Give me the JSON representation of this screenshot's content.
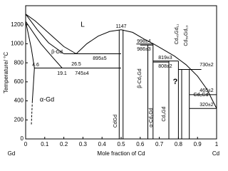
{
  "chart_data": {
    "type": "phase-diagram",
    "x_label": "Mole fraction of Cd",
    "y_label": "Temperature/ °C",
    "left_label": "Gd",
    "right_label": "Cd",
    "xlim": [
      0,
      1
    ],
    "ylim": [
      0,
      1400
    ],
    "xticks": [
      0,
      0.1,
      0.2,
      0.3,
      0.4,
      0.5,
      0.6,
      0.7,
      0.8,
      0.9,
      1
    ],
    "yticks": [
      0,
      200,
      400,
      600,
      800,
      1000,
      1200
    ],
    "color": "#000000",
    "lines": [
      {
        "x": [
          0,
          0.05,
          0.1,
          0.15,
          0.2,
          0.265
        ],
        "values": [
          1312,
          1240,
          1150,
          1060,
          970,
          895
        ]
      },
      {
        "x": [
          0.265,
          0.32,
          0.38,
          0.44,
          0.5
        ],
        "values": [
          895,
          1000,
          1080,
          1130,
          1147
        ]
      },
      {
        "x": [
          0.5,
          0.56,
          0.62,
          0.67,
          0.72,
          0.78,
          0.84,
          0.9,
          0.95,
          0.98,
          1
        ],
        "values": [
          1147,
          1120,
          1050,
          998,
          940,
          870,
          780,
          660,
          520,
          400,
          321
        ]
      },
      {
        "x": [
          0,
          0.06,
          0.12,
          0.2
        ],
        "values": [
          1312,
          1150,
          1010,
          895
        ]
      },
      {
        "x": [
          0,
          0.03,
          0.046
        ],
        "values": [
          1235,
          950,
          745
        ]
      },
      {
        "x": [
          0,
          0.08,
          0.14,
          0.191
        ],
        "values": [
          1235,
          1000,
          860,
          745
        ]
      },
      {
        "x": [
          0.2,
          0.5
        ],
        "values": [
          895,
          895
        ]
      },
      {
        "x": [
          0.046,
          0.5
        ],
        "values": [
          745,
          745
        ]
      },
      {
        "x": [
          0.046,
          0.04,
          0.035
        ],
        "values": [
          745,
          550,
          400
        ]
      },
      {
        "x": [
          0.035,
          0.03
        ],
        "values": [
          400,
          150
        ],
        "dash": true
      },
      {
        "x": [
          0.49,
          0.49
        ],
        "values": [
          0,
          1147
        ]
      },
      {
        "x": [
          0.51,
          0.51
        ],
        "values": [
          0,
          1147
        ]
      },
      {
        "x": [
          0.58,
          0.667
        ],
        "values": [
          998,
          998
        ]
      },
      {
        "x": [
          0.6,
          0.667
        ],
        "values": [
          986,
          986
        ]
      },
      {
        "x": [
          0.64,
          0.64
        ],
        "values": [
          0,
          986
        ]
      },
      {
        "x": [
          0.667,
          0.667
        ],
        "values": [
          0,
          998
        ]
      },
      {
        "x": [
          0.667,
          0.8
        ],
        "values": [
          819,
          819
        ]
      },
      {
        "x": [
          0.667,
          0.75
        ],
        "values": [
          808,
          808
        ]
      },
      {
        "x": [
          0.75,
          0.75
        ],
        "values": [
          0,
          819
        ]
      },
      {
        "x": [
          0.8,
          0.8
        ],
        "values": [
          0,
          819
        ]
      },
      {
        "x": [
          0.817,
          0.817
        ],
        "values": [
          0,
          730
        ]
      },
      {
        "x": [
          0.8,
          0.92
        ],
        "values": [
          730,
          730
        ]
      },
      {
        "x": [
          0.857,
          0.857
        ],
        "values": [
          0,
          730
        ]
      },
      {
        "x": [
          0.857,
          1
        ],
        "values": [
          465,
          465
        ]
      },
      {
        "x": [
          0.857,
          1
        ],
        "values": [
          320,
          320
        ]
      }
    ],
    "annotations": [
      "L",
      "1147",
      "β-Gd",
      "26.5",
      "895±5",
      "4.6",
      "19.1",
      "745±4",
      "α-Gd",
      "CdGd",
      "998±4",
      "986±3",
      "β-Cd₂Gd",
      "α-Cd₂Gd",
      "819±3",
      "808±2",
      "Cd₃Gd",
      "?",
      "Cd₄₅Gd₁₁",
      "Cd₅₈Gd₁₃",
      "Cd₆Gd",
      "730±2",
      "465±2",
      "320±2"
    ]
  }
}
